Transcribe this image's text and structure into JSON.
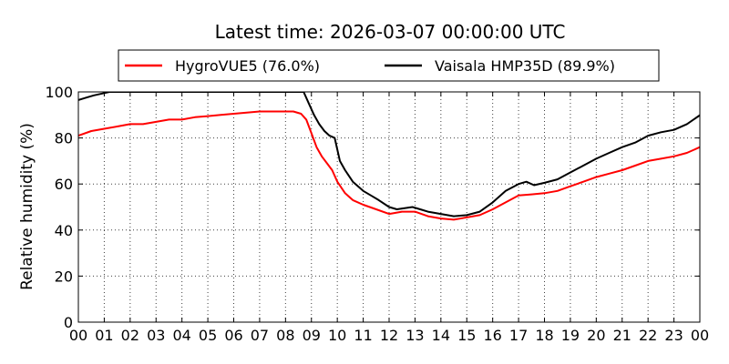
{
  "chart_data": {
    "type": "line",
    "title": "Latest time: 2026-03-07 00:00:00 UTC",
    "xlabel": "",
    "ylabel": "Relative humidity (%)",
    "xlim": [
      0,
      24
    ],
    "ylim": [
      0,
      100
    ],
    "x_tick_labels": [
      "00",
      "01",
      "02",
      "03",
      "04",
      "05",
      "06",
      "07",
      "08",
      "09",
      "10",
      "11",
      "12",
      "13",
      "14",
      "15",
      "16",
      "17",
      "18",
      "19",
      "20",
      "21",
      "22",
      "23",
      "00"
    ],
    "y_tick_labels": [
      "0",
      "20",
      "40",
      "60",
      "80",
      "100"
    ],
    "grid": true,
    "legend": "top-center",
    "series": [
      {
        "name": "HygroVUE5 (76.0%)",
        "color": "#ff0000",
        "x": [
          0,
          0.5,
          1,
          1.5,
          2,
          2.5,
          3,
          3.5,
          4,
          4.5,
          5,
          5.5,
          6,
          6.5,
          7,
          7.5,
          8,
          8.3,
          8.6,
          8.8,
          9,
          9.2,
          9.4,
          9.6,
          9.8,
          10,
          10.3,
          10.6,
          11,
          11.5,
          12,
          12.5,
          13,
          13.5,
          14,
          14.5,
          15,
          15.5,
          16,
          16.5,
          17,
          17.5,
          18,
          18.5,
          19,
          19.5,
          20,
          20.5,
          21,
          21.5,
          22,
          22.5,
          23,
          23.5,
          24
        ],
        "values": [
          81,
          83,
          84,
          85,
          86,
          86,
          87,
          88,
          88,
          89,
          89.5,
          90,
          90.5,
          91,
          91.5,
          91.5,
          91.5,
          91.5,
          90.5,
          88,
          82,
          76,
          72,
          69,
          66,
          61,
          56,
          53,
          51,
          49,
          47,
          48,
          48,
          46,
          45,
          44.5,
          45.5,
          46.5,
          49,
          52,
          55,
          55.5,
          56,
          57,
          59,
          61,
          63,
          64.5,
          66,
          68,
          70,
          71,
          72,
          73.5,
          76
        ]
      },
      {
        "name": "Vaisala HMP35D (89.9%)",
        "color": "#000000",
        "x": [
          0,
          0.3,
          0.6,
          1,
          1.2,
          8.7,
          8.9,
          9.1,
          9.3,
          9.5,
          9.7,
          9.9,
          10.1,
          10.3,
          10.6,
          11,
          11.3,
          11.6,
          12,
          12.3,
          12.6,
          12.9,
          13.2,
          13.5,
          14,
          14.5,
          15,
          15.5,
          16,
          16.5,
          17,
          17.3,
          17.6,
          18,
          18.5,
          19,
          19.5,
          20,
          20.5,
          21,
          21.5,
          22,
          22.5,
          23,
          23.5,
          24
        ],
        "values": [
          96.5,
          97.5,
          98.5,
          99.5,
          100,
          100,
          95,
          90,
          86,
          83,
          81,
          80,
          70,
          66,
          61,
          57,
          55,
          53,
          50,
          49,
          49.5,
          50,
          49,
          48,
          47,
          46,
          46.5,
          48,
          52,
          57,
          60,
          61,
          59.5,
          60.5,
          62,
          65,
          68,
          71,
          73.5,
          76,
          78,
          81,
          82.5,
          83.5,
          86,
          89.9
        ]
      }
    ]
  }
}
